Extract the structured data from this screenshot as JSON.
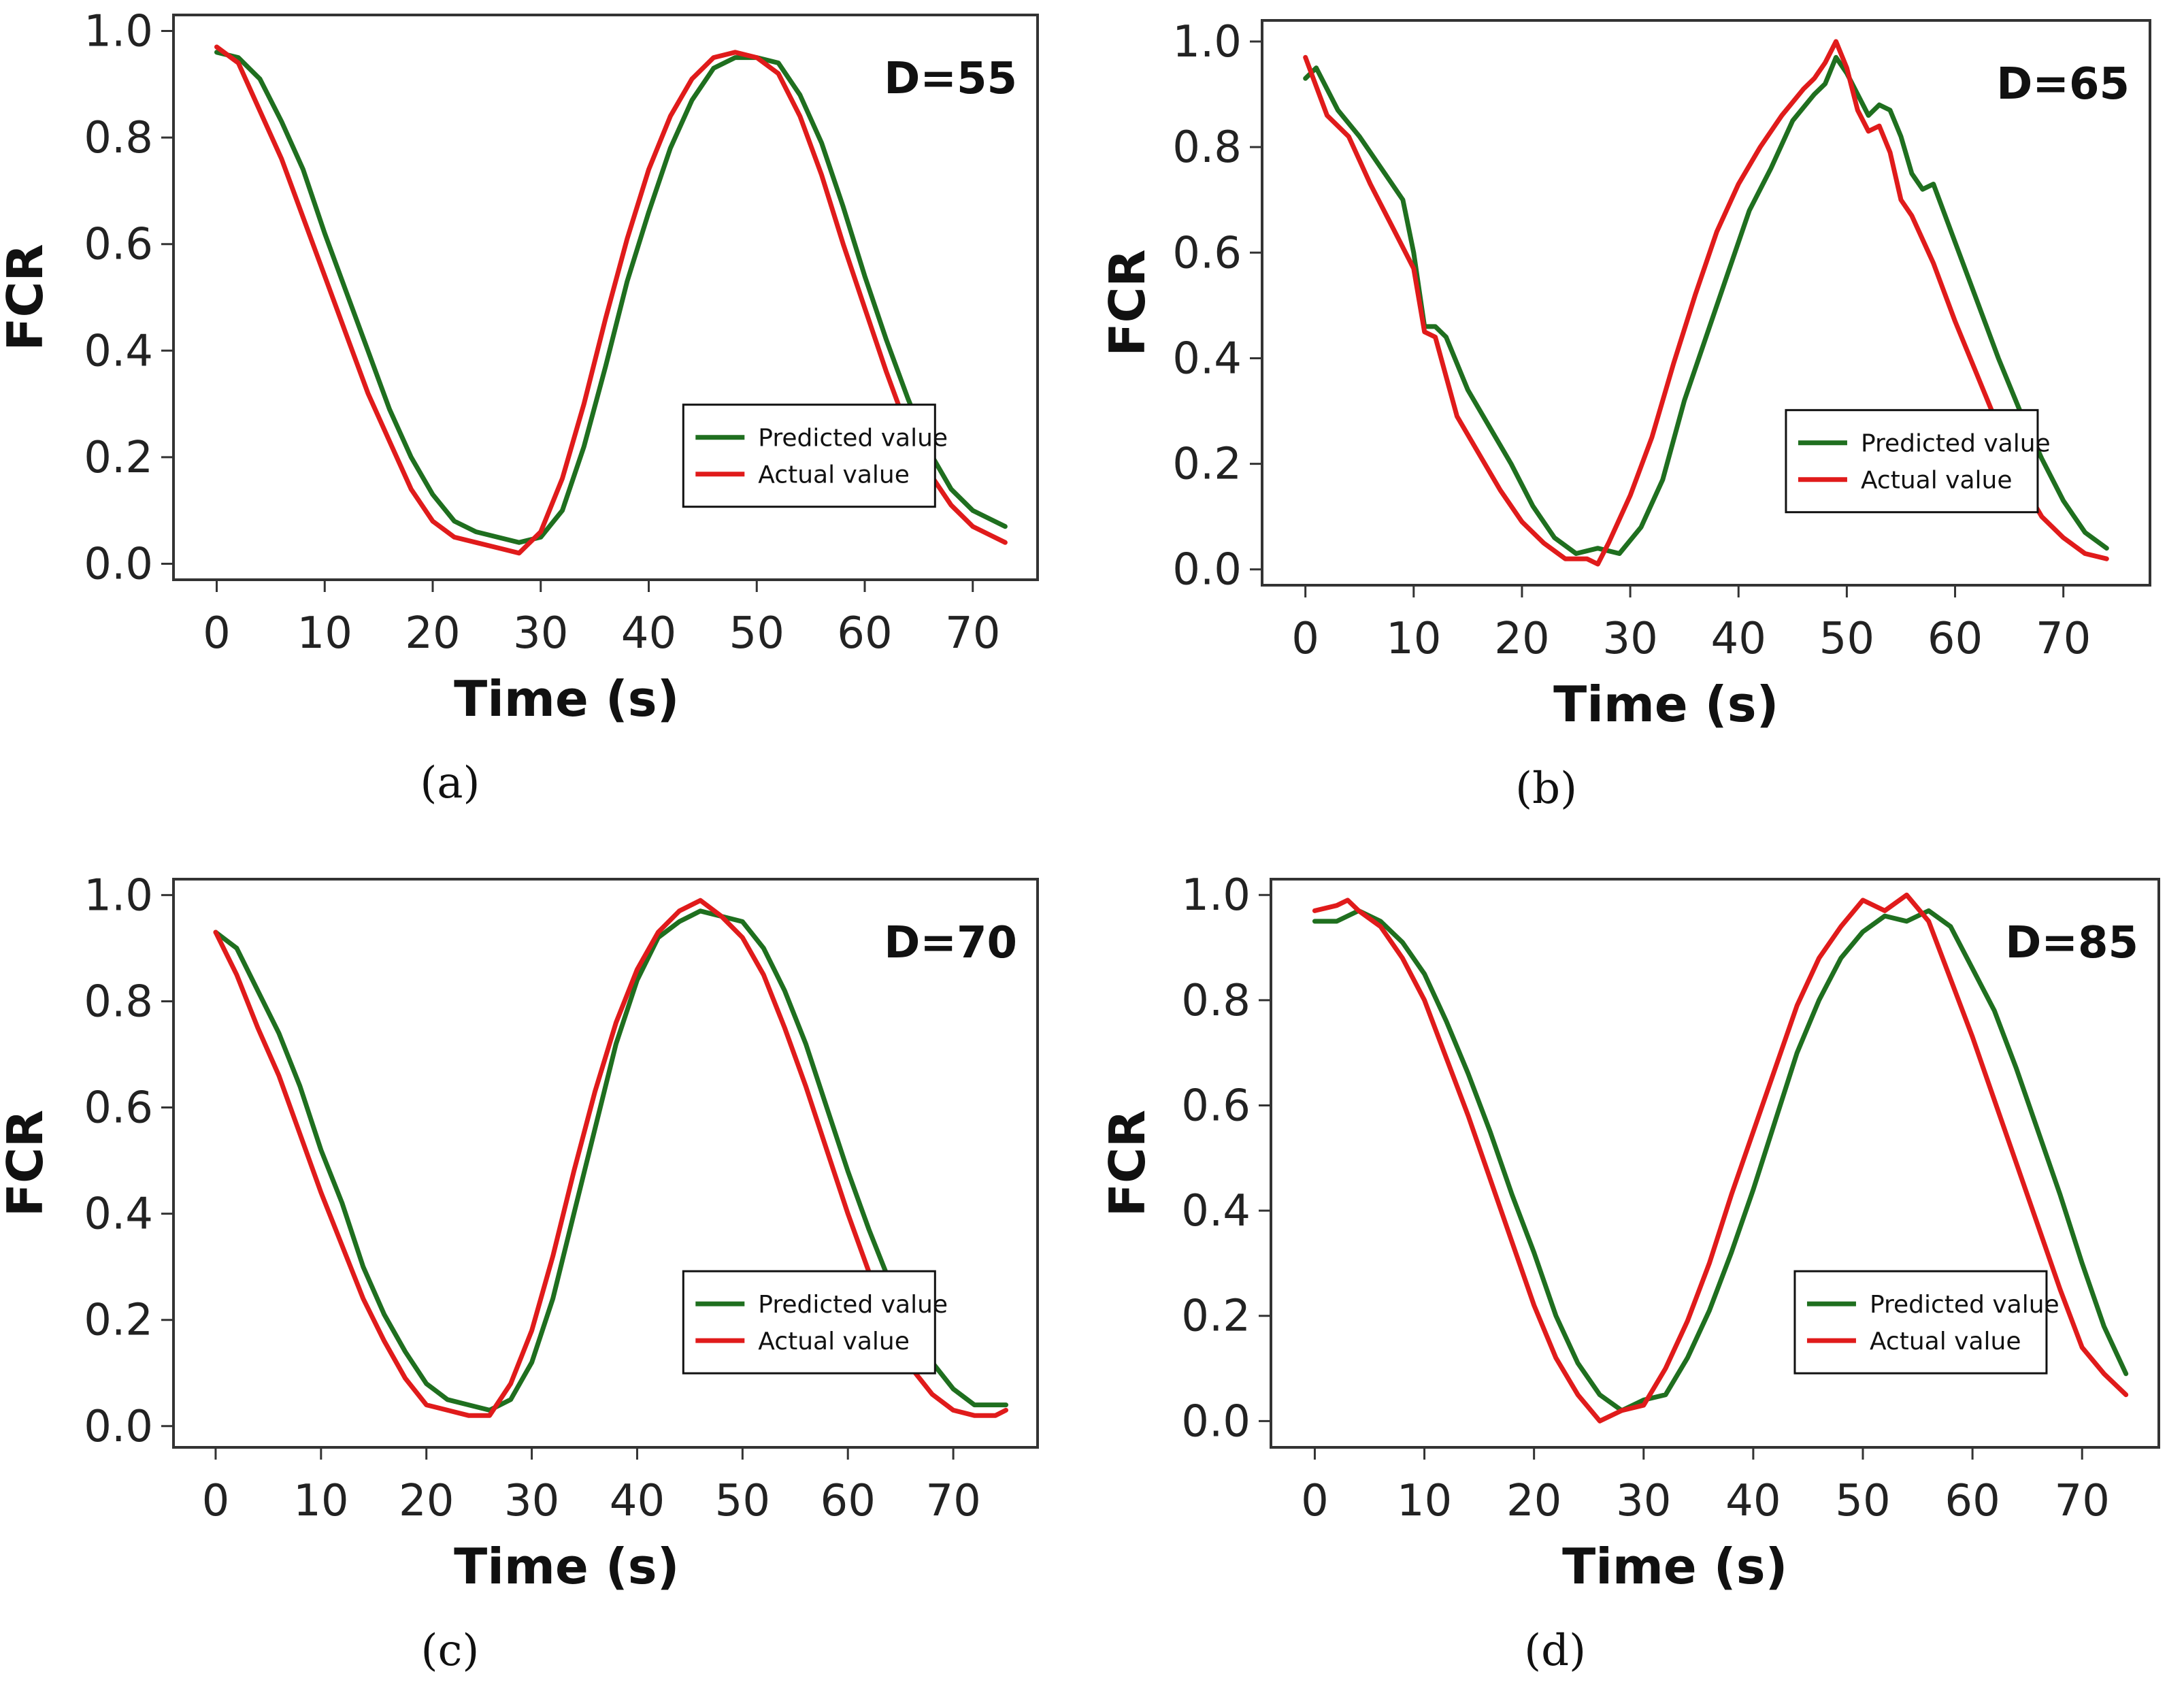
{
  "colors": {
    "predicted": "#1f6f1f",
    "actual": "#e01b1b",
    "frame": "#333333"
  },
  "chart_data": [
    {
      "type": "line",
      "panel": "a",
      "caption": "(a)",
      "annotation": "D=55",
      "xlabel": "Time (s)",
      "ylabel": "FCR",
      "xlim": [
        -4,
        76
      ],
      "ylim": [
        -0.03,
        1.03
      ],
      "xticks": [
        0,
        10,
        20,
        30,
        40,
        50,
        60,
        70
      ],
      "yticks": [
        0.0,
        0.2,
        0.4,
        0.6,
        0.8,
        1.0
      ],
      "ytick_labels": [
        "0.0",
        "0.2",
        "0.4",
        "0.6",
        "0.8",
        "1.0"
      ],
      "legend": {
        "position": "lower-right",
        "entries": [
          "Predicted value",
          "Actual value"
        ]
      },
      "series": [
        {
          "name": "Predicted value",
          "color": "#1f6f1f",
          "x": [
            0,
            2,
            4,
            6,
            8,
            10,
            12,
            14,
            16,
            18,
            20,
            22,
            24,
            26,
            28,
            30,
            32,
            34,
            36,
            38,
            40,
            42,
            44,
            46,
            48,
            50,
            52,
            54,
            56,
            58,
            60,
            62,
            64,
            66,
            68,
            70,
            72,
            73
          ],
          "y": [
            0.96,
            0.95,
            0.91,
            0.83,
            0.74,
            0.62,
            0.51,
            0.4,
            0.29,
            0.2,
            0.13,
            0.08,
            0.06,
            0.05,
            0.04,
            0.05,
            0.1,
            0.22,
            0.37,
            0.53,
            0.66,
            0.78,
            0.87,
            0.93,
            0.95,
            0.95,
            0.94,
            0.88,
            0.79,
            0.67,
            0.54,
            0.42,
            0.31,
            0.21,
            0.14,
            0.1,
            0.08,
            0.07
          ]
        },
        {
          "name": "Actual value",
          "color": "#e01b1b",
          "x": [
            0,
            2,
            4,
            6,
            8,
            10,
            12,
            14,
            16,
            18,
            20,
            22,
            24,
            26,
            28,
            30,
            32,
            34,
            36,
            38,
            40,
            42,
            44,
            46,
            48,
            50,
            52,
            54,
            56,
            58,
            60,
            62,
            64,
            66,
            68,
            70,
            72,
            73
          ],
          "y": [
            0.97,
            0.94,
            0.85,
            0.76,
            0.65,
            0.54,
            0.43,
            0.32,
            0.23,
            0.14,
            0.08,
            0.05,
            0.04,
            0.03,
            0.02,
            0.06,
            0.16,
            0.3,
            0.46,
            0.61,
            0.74,
            0.84,
            0.91,
            0.95,
            0.96,
            0.95,
            0.92,
            0.84,
            0.73,
            0.6,
            0.48,
            0.36,
            0.25,
            0.17,
            0.11,
            0.07,
            0.05,
            0.04
          ]
        }
      ]
    },
    {
      "type": "line",
      "panel": "b",
      "caption": "(b)",
      "annotation": "D=65",
      "xlabel": "Time (s)",
      "ylabel": "FCR",
      "xlim": [
        -4,
        78
      ],
      "ylim": [
        -0.03,
        1.04
      ],
      "xticks": [
        0,
        10,
        20,
        30,
        40,
        50,
        60,
        70
      ],
      "yticks": [
        0.0,
        0.2,
        0.4,
        0.6,
        0.8,
        1.0
      ],
      "ytick_labels": [
        "0.0",
        "0.2",
        "0.4",
        "0.6",
        "0.8",
        "1.0"
      ],
      "legend": {
        "position": "lower-right",
        "entries": [
          "Predicted value",
          "Actual value"
        ]
      },
      "series": [
        {
          "name": "Predicted value",
          "color": "#1f6f1f",
          "x": [
            0,
            1,
            3,
            5,
            7,
            9,
            10,
            11,
            12,
            13,
            15,
            17,
            19,
            21,
            23,
            25,
            27,
            29,
            31,
            33,
            35,
            37,
            39,
            41,
            43,
            45,
            47,
            48,
            49,
            50,
            51,
            52,
            53,
            54,
            55,
            56,
            57,
            58,
            60,
            62,
            64,
            66,
            68,
            70,
            72,
            74
          ],
          "y": [
            0.93,
            0.95,
            0.87,
            0.82,
            0.76,
            0.7,
            0.6,
            0.46,
            0.46,
            0.44,
            0.34,
            0.27,
            0.2,
            0.12,
            0.06,
            0.03,
            0.04,
            0.03,
            0.08,
            0.17,
            0.32,
            0.44,
            0.56,
            0.68,
            0.76,
            0.85,
            0.9,
            0.92,
            0.97,
            0.94,
            0.9,
            0.86,
            0.88,
            0.87,
            0.82,
            0.75,
            0.72,
            0.73,
            0.62,
            0.51,
            0.4,
            0.3,
            0.21,
            0.13,
            0.07,
            0.04
          ]
        },
        {
          "name": "Actual value",
          "color": "#e01b1b",
          "x": [
            0,
            2,
            4,
            6,
            8,
            10,
            11,
            12,
            14,
            16,
            18,
            20,
            22,
            24,
            26,
            27,
            28,
            30,
            32,
            34,
            36,
            38,
            40,
            42,
            44,
            46,
            47,
            48,
            49,
            50,
            51,
            52,
            53,
            54,
            55,
            56,
            58,
            60,
            62,
            64,
            66,
            68,
            70,
            72,
            74
          ],
          "y": [
            0.97,
            0.86,
            0.82,
            0.73,
            0.65,
            0.57,
            0.45,
            0.44,
            0.29,
            0.22,
            0.15,
            0.09,
            0.05,
            0.02,
            0.02,
            0.01,
            0.05,
            0.14,
            0.25,
            0.39,
            0.52,
            0.64,
            0.73,
            0.8,
            0.86,
            0.91,
            0.93,
            0.96,
            1.0,
            0.95,
            0.87,
            0.83,
            0.84,
            0.79,
            0.7,
            0.67,
            0.58,
            0.47,
            0.37,
            0.27,
            0.17,
            0.1,
            0.06,
            0.03,
            0.02
          ]
        }
      ]
    },
    {
      "type": "line",
      "panel": "c",
      "caption": "(c)",
      "annotation": "D=70",
      "xlabel": "Time (s)",
      "ylabel": "FCR",
      "xlim": [
        -4,
        78
      ],
      "ylim": [
        -0.04,
        1.03
      ],
      "xticks": [
        0,
        10,
        20,
        30,
        40,
        50,
        60,
        70
      ],
      "yticks": [
        0.0,
        0.2,
        0.4,
        0.6,
        0.8,
        1.0
      ],
      "ytick_labels": [
        "0.0",
        "0.2",
        "0.4",
        "0.6",
        "0.8",
        "1.0"
      ],
      "legend": {
        "position": "lower-right",
        "entries": [
          "Predicted value",
          "Actual value"
        ]
      },
      "series": [
        {
          "name": "Predicted value",
          "color": "#1f6f1f",
          "x": [
            0,
            2,
            4,
            6,
            8,
            10,
            12,
            14,
            16,
            18,
            20,
            22,
            24,
            26,
            28,
            30,
            32,
            34,
            36,
            38,
            40,
            42,
            44,
            46,
            48,
            50,
            52,
            54,
            56,
            58,
            60,
            62,
            64,
            66,
            68,
            70,
            72,
            74,
            75
          ],
          "y": [
            0.93,
            0.9,
            0.82,
            0.74,
            0.64,
            0.52,
            0.42,
            0.3,
            0.21,
            0.14,
            0.08,
            0.05,
            0.04,
            0.03,
            0.05,
            0.12,
            0.24,
            0.4,
            0.56,
            0.72,
            0.84,
            0.92,
            0.95,
            0.97,
            0.96,
            0.95,
            0.9,
            0.82,
            0.72,
            0.6,
            0.48,
            0.37,
            0.27,
            0.18,
            0.12,
            0.07,
            0.04,
            0.04,
            0.04
          ]
        },
        {
          "name": "Actual value",
          "color": "#e01b1b",
          "x": [
            0,
            2,
            4,
            6,
            8,
            10,
            12,
            14,
            16,
            18,
            20,
            22,
            24,
            26,
            28,
            30,
            32,
            34,
            36,
            38,
            40,
            42,
            44,
            46,
            48,
            50,
            52,
            54,
            56,
            58,
            60,
            62,
            64,
            66,
            68,
            70,
            72,
            74,
            75
          ],
          "y": [
            0.93,
            0.85,
            0.75,
            0.66,
            0.55,
            0.44,
            0.34,
            0.24,
            0.16,
            0.09,
            0.04,
            0.03,
            0.02,
            0.02,
            0.08,
            0.18,
            0.32,
            0.48,
            0.63,
            0.76,
            0.86,
            0.93,
            0.97,
            0.99,
            0.96,
            0.92,
            0.85,
            0.75,
            0.64,
            0.52,
            0.4,
            0.29,
            0.19,
            0.11,
            0.06,
            0.03,
            0.02,
            0.02,
            0.03
          ]
        }
      ]
    },
    {
      "type": "line",
      "panel": "d",
      "caption": "(d)",
      "annotation": "D=85",
      "xlabel": "Time (s)",
      "ylabel": "FCR",
      "xlim": [
        -4,
        77
      ],
      "ylim": [
        -0.05,
        1.03
      ],
      "xticks": [
        0,
        10,
        20,
        30,
        40,
        50,
        60,
        70
      ],
      "yticks": [
        0.0,
        0.2,
        0.4,
        0.6,
        0.8,
        1.0
      ],
      "ytick_labels": [
        "0.0",
        "0.2",
        "0.4",
        "0.6",
        "0.8",
        "1.0"
      ],
      "legend": {
        "position": "lower-right",
        "entries": [
          "Predicted value",
          "Actual value"
        ]
      },
      "series": [
        {
          "name": "Predicted value",
          "color": "#1f6f1f",
          "x": [
            0,
            2,
            4,
            6,
            8,
            10,
            12,
            14,
            16,
            18,
            20,
            22,
            24,
            26,
            28,
            30,
            32,
            34,
            36,
            38,
            40,
            42,
            44,
            46,
            48,
            50,
            52,
            54,
            56,
            58,
            60,
            62,
            64,
            66,
            68,
            70,
            72,
            74
          ],
          "y": [
            0.95,
            0.95,
            0.97,
            0.95,
            0.91,
            0.85,
            0.76,
            0.66,
            0.55,
            0.43,
            0.32,
            0.2,
            0.11,
            0.05,
            0.02,
            0.04,
            0.05,
            0.12,
            0.21,
            0.32,
            0.44,
            0.57,
            0.7,
            0.8,
            0.88,
            0.93,
            0.96,
            0.95,
            0.97,
            0.94,
            0.86,
            0.78,
            0.67,
            0.55,
            0.43,
            0.3,
            0.18,
            0.09
          ]
        },
        {
          "name": "Actual value",
          "color": "#e01b1b",
          "x": [
            0,
            2,
            3,
            4,
            6,
            8,
            10,
            12,
            14,
            16,
            18,
            20,
            22,
            24,
            26,
            28,
            30,
            32,
            34,
            36,
            38,
            40,
            42,
            44,
            46,
            48,
            50,
            52,
            54,
            56,
            58,
            60,
            62,
            64,
            66,
            68,
            70,
            72,
            74
          ],
          "y": [
            0.97,
            0.98,
            0.99,
            0.97,
            0.94,
            0.88,
            0.8,
            0.69,
            0.58,
            0.46,
            0.34,
            0.22,
            0.12,
            0.05,
            0.0,
            0.02,
            0.03,
            0.1,
            0.19,
            0.3,
            0.43,
            0.55,
            0.67,
            0.79,
            0.88,
            0.94,
            0.99,
            0.97,
            1.0,
            0.95,
            0.84,
            0.73,
            0.61,
            0.49,
            0.37,
            0.25,
            0.14,
            0.09,
            0.05
          ]
        }
      ]
    }
  ]
}
